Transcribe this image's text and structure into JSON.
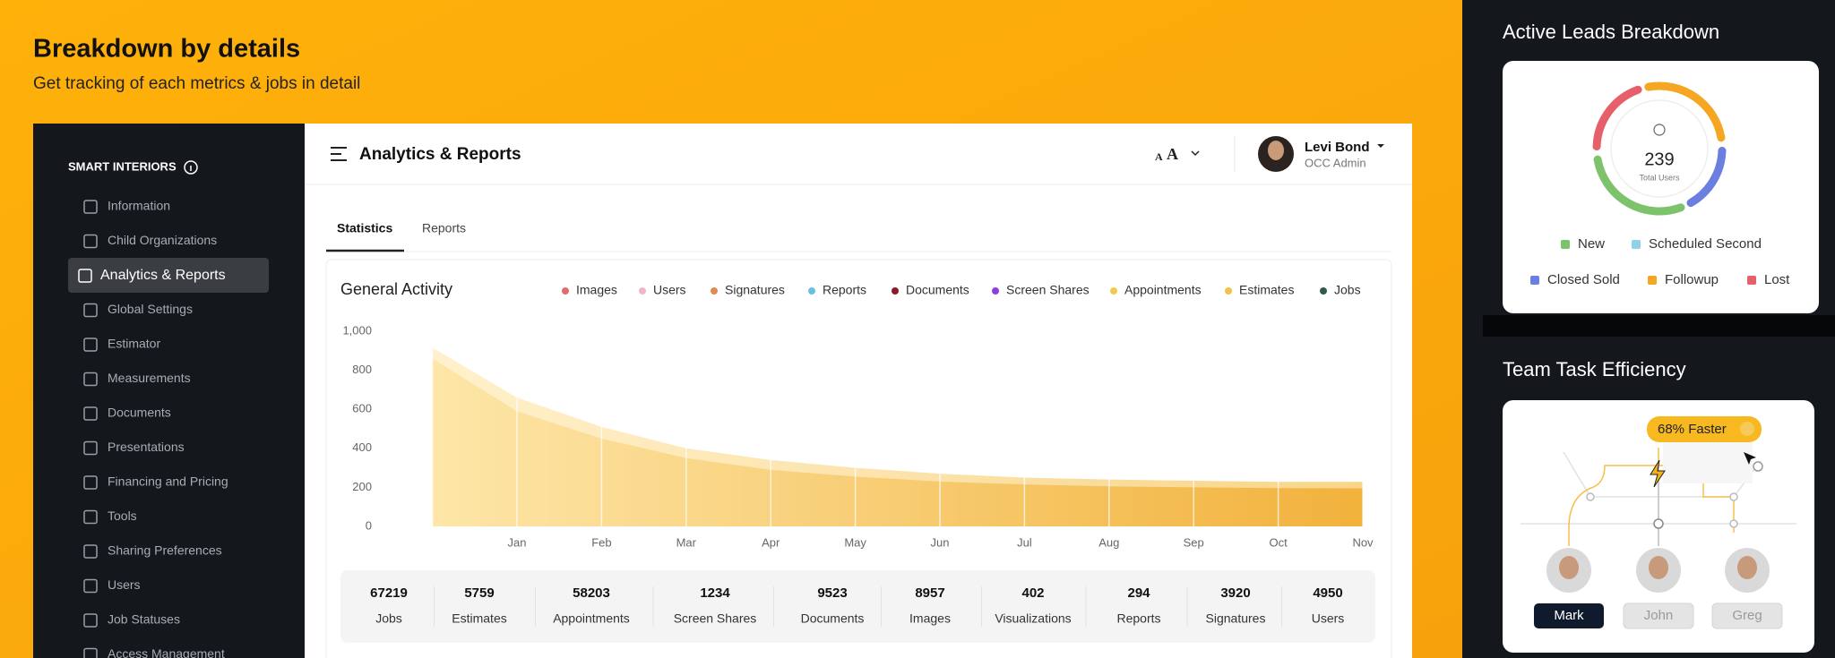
{
  "header": {
    "title": "Breakdown by details",
    "subtitle": "Get tracking  of each metrics & jobs in detail"
  },
  "sidebar": {
    "brand": "SMART INTERIORS",
    "active": 2,
    "items": [
      "Information",
      "Child Organizations",
      "Analytics & Reports",
      "Global Settings",
      "Estimator",
      "Measurements",
      "Documents",
      "Presentations",
      "Financing and Pricing",
      "Tools",
      "Sharing Preferences",
      "Users",
      "Job Statuses",
      "Access Management"
    ]
  },
  "topbar": {
    "title": "Analytics & Reports",
    "font_sizes": [
      "A",
      "A"
    ],
    "user": {
      "name": "Levi Bond",
      "role": "OCC Admin"
    }
  },
  "tabs": [
    "Statistics",
    "Reports"
  ],
  "activity": {
    "type": "area",
    "title": "General Activity",
    "categories": [
      null,
      "Jan",
      "Feb",
      "Mar",
      "Apr",
      "May",
      "Jun",
      "Jul",
      "Aug",
      "Sep",
      "Oct",
      "Nov"
    ],
    "ylim": [
      0,
      1000
    ],
    "yticks": [
      0,
      200,
      400,
      600,
      800,
      {
        "value": 1000,
        "label": "1,000"
      }
    ],
    "series": [
      {
        "name": "Images",
        "color": "#e26b6b"
      },
      {
        "name": "Users",
        "color": "#f2b6c6"
      },
      {
        "name": "Signatures",
        "color": "#e08a4f"
      },
      {
        "name": "Reports",
        "color": "#6bbfe0"
      },
      {
        "name": "Documents",
        "color": "#8b1a2a"
      },
      {
        "name": "Screen Shares",
        "color": "#8c3fe0"
      },
      {
        "name": "Appointments",
        "color": "#f2c94c",
        "values": [
          860,
          590,
          450,
          350,
          290,
          255,
          230,
          215,
          205,
          200,
          196,
          195
        ]
      },
      {
        "name": "Estimates",
        "color": "#f2c14a",
        "values": [
          916,
          660,
          510,
          400,
          340,
          300,
          270,
          250,
          240,
          234,
          228,
          228
        ]
      },
      {
        "name": "Jobs",
        "color": "#2f5a4a"
      }
    ]
  },
  "stats": [
    {
      "value": 67219,
      "label": "Jobs"
    },
    {
      "value": 5759,
      "label": "Estimates"
    },
    {
      "value": 58203,
      "label": "Appointments"
    },
    {
      "value": 1234,
      "label": "Screen Shares"
    },
    {
      "value": 9523,
      "label": "Documents"
    },
    {
      "value": 8957,
      "label": "Images"
    },
    {
      "value": 402,
      "label": "Visualizations"
    },
    {
      "value": 294,
      "label": "Reports"
    },
    {
      "value": 3920,
      "label": "Signatures"
    },
    {
      "value": 4950,
      "label": "Users"
    }
  ],
  "leads": {
    "title": "Active Leads Breakdown",
    "total": 239,
    "total_label": "Total Users",
    "legend": [
      {
        "name": "New",
        "color": "#7cc36b"
      },
      {
        "name": "Scheduled Second",
        "color": "#8fd0ea"
      },
      {
        "name": "Closed Sold",
        "color": "#6a7fe0"
      },
      {
        "name": "Followup",
        "color": "#f5a623"
      },
      {
        "name": "Lost",
        "color": "#e5606a"
      }
    ]
  },
  "efficiency": {
    "title": "Team Task Efficiency",
    "badge": "68% Faster",
    "members": [
      "Mark",
      "John",
      "Greg"
    ]
  }
}
